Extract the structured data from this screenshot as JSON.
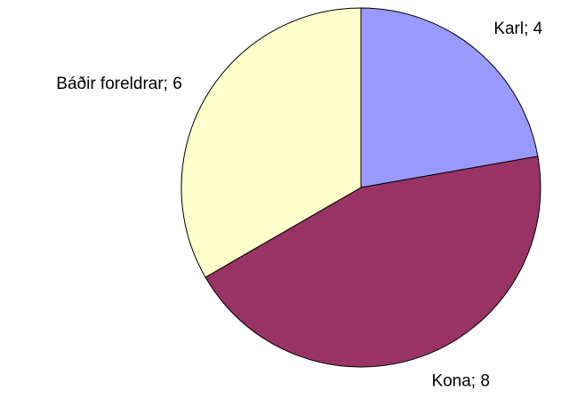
{
  "chart_data": {
    "type": "pie",
    "labels": [
      "Karl; 4",
      "Kona; 8",
      "Báðir foreldrar; 6"
    ],
    "values": [
      4,
      8,
      6
    ],
    "colors": [
      "#9999ff",
      "#993366",
      "#ffffcc"
    ]
  }
}
